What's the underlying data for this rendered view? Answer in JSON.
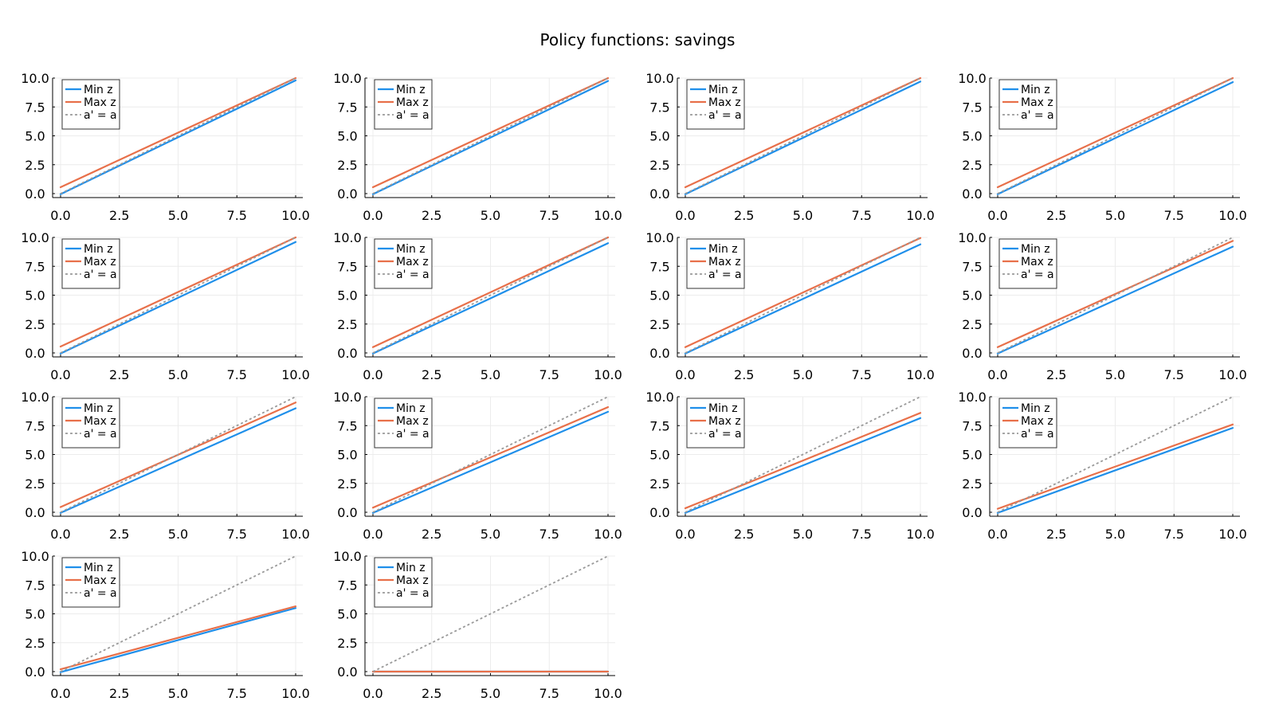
{
  "title": "Policy functions: savings",
  "colors": {
    "min_z": "#1f8fea",
    "max_z": "#e8704a",
    "diag": "#9a9a9a",
    "grid": "#ececec",
    "axis": "#000000"
  },
  "chart_data": [
    {
      "type": "line",
      "xlim": [
        0,
        10
      ],
      "ylim": [
        0,
        10
      ],
      "x": [
        0,
        10
      ],
      "xticks": [
        "0.0",
        "2.5",
        "5.0",
        "7.5",
        "10.0"
      ],
      "yticks": [
        "0.0",
        "2.5",
        "5.0",
        "7.5",
        "10.0"
      ],
      "legend_position": "top-left",
      "series": [
        {
          "name": "Min z",
          "values": [
            -0.05,
            9.8
          ]
        },
        {
          "name": "Max z",
          "values": [
            0.55,
            10.0
          ]
        },
        {
          "name": "a' = a",
          "values": [
            0,
            10
          ],
          "style": "dashed"
        }
      ]
    },
    {
      "type": "line",
      "xlim": [
        0,
        10
      ],
      "ylim": [
        0,
        10
      ],
      "x": [
        0,
        10
      ],
      "xticks": [
        "0.0",
        "2.5",
        "5.0",
        "7.5",
        "10.0"
      ],
      "yticks": [
        "0.0",
        "2.5",
        "5.0",
        "7.5",
        "10.0"
      ],
      "legend_position": "top-left",
      "series": [
        {
          "name": "Min z",
          "values": [
            -0.05,
            9.75
          ]
        },
        {
          "name": "Max z",
          "values": [
            0.55,
            10.0
          ]
        },
        {
          "name": "a' = a",
          "values": [
            0,
            10
          ],
          "style": "dashed"
        }
      ]
    },
    {
      "type": "line",
      "xlim": [
        0,
        10
      ],
      "ylim": [
        0,
        10
      ],
      "x": [
        0,
        10
      ],
      "xticks": [
        "0.0",
        "2.5",
        "5.0",
        "7.5",
        "10.0"
      ],
      "yticks": [
        "0.0",
        "2.5",
        "5.0",
        "7.5",
        "10.0"
      ],
      "legend_position": "top-left",
      "series": [
        {
          "name": "Min z",
          "values": [
            -0.05,
            9.7
          ]
        },
        {
          "name": "Max z",
          "values": [
            0.55,
            10.0
          ]
        },
        {
          "name": "a' = a",
          "values": [
            0,
            10
          ],
          "style": "dashed"
        }
      ]
    },
    {
      "type": "line",
      "xlim": [
        0,
        10
      ],
      "ylim": [
        0,
        10
      ],
      "x": [
        0,
        10
      ],
      "xticks": [
        "0.0",
        "2.5",
        "5.0",
        "7.5",
        "10.0"
      ],
      "yticks": [
        "0.0",
        "2.5",
        "5.0",
        "7.5",
        "10.0"
      ],
      "legend_position": "top-left",
      "series": [
        {
          "name": "Min z",
          "values": [
            -0.05,
            9.65
          ]
        },
        {
          "name": "Max z",
          "values": [
            0.55,
            10.0
          ]
        },
        {
          "name": "a' = a",
          "values": [
            0,
            10
          ],
          "style": "dashed"
        }
      ]
    },
    {
      "type": "line",
      "xlim": [
        0,
        10
      ],
      "ylim": [
        0,
        10
      ],
      "x": [
        0,
        10
      ],
      "xticks": [
        "0.0",
        "2.5",
        "5.0",
        "7.5",
        "10.0"
      ],
      "yticks": [
        "0.0",
        "2.5",
        "5.0",
        "7.5",
        "10.0"
      ],
      "legend_position": "top-left",
      "series": [
        {
          "name": "Min z",
          "values": [
            -0.05,
            9.6
          ]
        },
        {
          "name": "Max z",
          "values": [
            0.55,
            10.0
          ]
        },
        {
          "name": "a' = a",
          "values": [
            0,
            10
          ],
          "style": "dashed"
        }
      ]
    },
    {
      "type": "line",
      "xlim": [
        0,
        10
      ],
      "ylim": [
        0,
        10
      ],
      "x": [
        0,
        10
      ],
      "xticks": [
        "0.0",
        "2.5",
        "5.0",
        "7.5",
        "10.0"
      ],
      "yticks": [
        "0.0",
        "2.5",
        "5.0",
        "7.5",
        "10.0"
      ],
      "legend_position": "top-left",
      "series": [
        {
          "name": "Min z",
          "values": [
            -0.05,
            9.5
          ]
        },
        {
          "name": "Max z",
          "values": [
            0.5,
            10.0
          ]
        },
        {
          "name": "a' = a",
          "values": [
            0,
            10
          ],
          "style": "dashed"
        }
      ]
    },
    {
      "type": "line",
      "xlim": [
        0,
        10
      ],
      "ylim": [
        0,
        10
      ],
      "x": [
        0,
        10
      ],
      "xticks": [
        "0.0",
        "2.5",
        "5.0",
        "7.5",
        "10.0"
      ],
      "yticks": [
        "0.0",
        "2.5",
        "5.0",
        "7.5",
        "10.0"
      ],
      "legend_position": "top-left",
      "series": [
        {
          "name": "Min z",
          "values": [
            -0.05,
            9.4
          ]
        },
        {
          "name": "Max z",
          "values": [
            0.5,
            9.95
          ]
        },
        {
          "name": "a' = a",
          "values": [
            0,
            10
          ],
          "style": "dashed"
        }
      ]
    },
    {
      "type": "line",
      "xlim": [
        0,
        10
      ],
      "ylim": [
        0,
        10
      ],
      "x": [
        0,
        10
      ],
      "xticks": [
        "0.0",
        "2.5",
        "5.0",
        "7.5",
        "10.0"
      ],
      "yticks": [
        "0.0",
        "2.5",
        "5.0",
        "7.5",
        "10.0"
      ],
      "legend_position": "top-left",
      "series": [
        {
          "name": "Min z",
          "values": [
            -0.05,
            9.2
          ]
        },
        {
          "name": "Max z",
          "values": [
            0.5,
            9.7
          ]
        },
        {
          "name": "a' = a",
          "values": [
            0,
            10
          ],
          "style": "dashed"
        }
      ]
    },
    {
      "type": "line",
      "xlim": [
        0,
        10
      ],
      "ylim": [
        0,
        10
      ],
      "x": [
        0,
        10
      ],
      "xticks": [
        "0.0",
        "2.5",
        "5.0",
        "7.5",
        "10.0"
      ],
      "yticks": [
        "0.0",
        "2.5",
        "5.0",
        "7.5",
        "10.0"
      ],
      "legend_position": "top-left",
      "series": [
        {
          "name": "Min z",
          "values": [
            -0.05,
            9.0
          ]
        },
        {
          "name": "Max z",
          "values": [
            0.45,
            9.5
          ]
        },
        {
          "name": "a' = a",
          "values": [
            0,
            10
          ],
          "style": "dashed"
        }
      ]
    },
    {
      "type": "line",
      "xlim": [
        0,
        10
      ],
      "ylim": [
        0,
        10
      ],
      "x": [
        0,
        10
      ],
      "xticks": [
        "0.0",
        "2.5",
        "5.0",
        "7.5",
        "10.0"
      ],
      "yticks": [
        "0.0",
        "2.5",
        "5.0",
        "7.5",
        "10.0"
      ],
      "legend_position": "top-left",
      "series": [
        {
          "name": "Min z",
          "values": [
            -0.05,
            8.7
          ]
        },
        {
          "name": "Max z",
          "values": [
            0.4,
            9.1
          ]
        },
        {
          "name": "a' = a",
          "values": [
            0,
            10
          ],
          "style": "dashed"
        }
      ]
    },
    {
      "type": "line",
      "xlim": [
        0,
        10
      ],
      "ylim": [
        0,
        10
      ],
      "x": [
        0,
        10
      ],
      "xticks": [
        "0.0",
        "2.5",
        "5.0",
        "7.5",
        "10.0"
      ],
      "yticks": [
        "0.0",
        "2.5",
        "5.0",
        "7.5",
        "10.0"
      ],
      "legend_position": "top-left",
      "series": [
        {
          "name": "Min z",
          "values": [
            -0.05,
            8.15
          ]
        },
        {
          "name": "Max z",
          "values": [
            0.35,
            8.6
          ]
        },
        {
          "name": "a' = a",
          "values": [
            0,
            10
          ],
          "style": "dashed"
        }
      ]
    },
    {
      "type": "line",
      "xlim": [
        0,
        10
      ],
      "ylim": [
        0,
        10
      ],
      "x": [
        0,
        10
      ],
      "xticks": [
        "0.0",
        "2.5",
        "5.0",
        "7.5",
        "10.0"
      ],
      "yticks": [
        "0.0",
        "2.5",
        "5.0",
        "7.5",
        "10.0"
      ],
      "legend_position": "top-left",
      "series": [
        {
          "name": "Min z",
          "values": [
            -0.05,
            7.3
          ]
        },
        {
          "name": "Max z",
          "values": [
            0.3,
            7.6
          ]
        },
        {
          "name": "a' = a",
          "values": [
            0,
            10
          ],
          "style": "dashed"
        }
      ]
    },
    {
      "type": "line",
      "xlim": [
        0,
        10
      ],
      "ylim": [
        0,
        10
      ],
      "x": [
        0,
        10
      ],
      "xticks": [
        "0.0",
        "2.5",
        "5.0",
        "7.5",
        "10.0"
      ],
      "yticks": [
        "0.0",
        "2.5",
        "5.0",
        "7.5",
        "10.0"
      ],
      "legend_position": "top-left",
      "series": [
        {
          "name": "Min z",
          "values": [
            -0.05,
            5.5
          ]
        },
        {
          "name": "Max z",
          "values": [
            0.2,
            5.65
          ]
        },
        {
          "name": "a' = a",
          "values": [
            0,
            10
          ],
          "style": "dashed"
        }
      ]
    },
    {
      "type": "line",
      "xlim": [
        0,
        10
      ],
      "ylim": [
        0,
        10
      ],
      "x": [
        0,
        10
      ],
      "xticks": [
        "0.0",
        "2.5",
        "5.0",
        "7.5",
        "10.0"
      ],
      "yticks": [
        "0.0",
        "2.5",
        "5.0",
        "7.5",
        "10.0"
      ],
      "legend_position": "top-left",
      "series": [
        {
          "name": "Min z",
          "values": [
            0.0,
            0.0
          ]
        },
        {
          "name": "Max z",
          "values": [
            0.0,
            0.0
          ]
        },
        {
          "name": "a' = a",
          "values": [
            0,
            10
          ],
          "style": "dashed"
        }
      ]
    }
  ]
}
